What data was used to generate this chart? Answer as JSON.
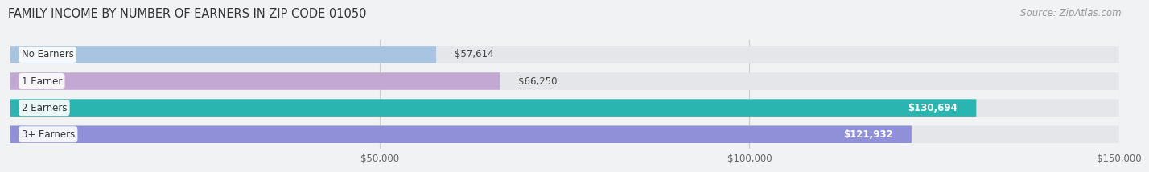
{
  "title": "FAMILY INCOME BY NUMBER OF EARNERS IN ZIP CODE 01050",
  "source": "Source: ZipAtlas.com",
  "categories": [
    "No Earners",
    "1 Earner",
    "2 Earners",
    "3+ Earners"
  ],
  "values": [
    57614,
    66250,
    130694,
    121932
  ],
  "bar_colors": [
    "#a8c4e0",
    "#c4a8d4",
    "#2ab5b0",
    "#9090d8"
  ],
  "background_color": "#f0f2f4",
  "bar_bg_color": "#e4e6ea",
  "xlim": [
    0,
    150000
  ],
  "xticks": [
    50000,
    100000,
    150000
  ],
  "xtick_labels": [
    "$50,000",
    "$100,000",
    "$150,000"
  ],
  "title_fontsize": 10.5,
  "source_fontsize": 8.5,
  "bar_height": 0.65,
  "label_fontsize": 8.5,
  "category_fontsize": 8.5,
  "value_threshold": 80000
}
